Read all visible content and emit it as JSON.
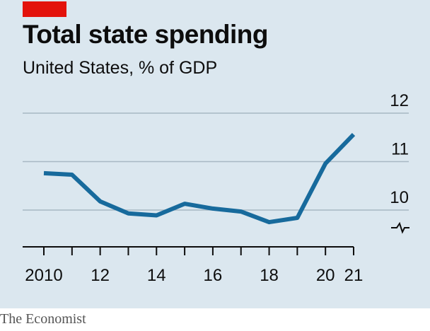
{
  "header": {
    "title": "Total state spending",
    "subtitle": "United States, % of GDP"
  },
  "footer": {
    "source": "The Economist"
  },
  "colors": {
    "background": "#dbe7ef",
    "brand_tag": "#e3120b",
    "line": "#176a9c",
    "gridline": "#a8b8c4",
    "axis": "#0d0d0d"
  },
  "chart_data": {
    "type": "line",
    "title": "Total state spending",
    "subtitle": "United States, % of GDP",
    "xlabel": "",
    "ylabel": "",
    "x": [
      2010,
      2011,
      2012,
      2013,
      2014,
      2015,
      2016,
      2017,
      2018,
      2019,
      2020,
      2021
    ],
    "x_tick_labels": [
      {
        "x": 2010,
        "label": "2010"
      },
      {
        "x": 2012,
        "label": "12"
      },
      {
        "x": 2014,
        "label": "14"
      },
      {
        "x": 2016,
        "label": "16"
      },
      {
        "x": 2018,
        "label": "18"
      },
      {
        "x": 2020,
        "label": "20"
      },
      {
        "x": 2021,
        "label": "21"
      }
    ],
    "y_ticks": [
      10,
      11,
      12
    ],
    "ylim": [
      9.3,
      12
    ],
    "y_axis_broken": true,
    "y_axis_position": "right",
    "grid": true,
    "series": [
      {
        "values": [
          10.76,
          10.73,
          10.18,
          9.93,
          9.89,
          10.13,
          10.03,
          9.97,
          9.75,
          9.84,
          10.96,
          11.56
        ]
      }
    ]
  }
}
